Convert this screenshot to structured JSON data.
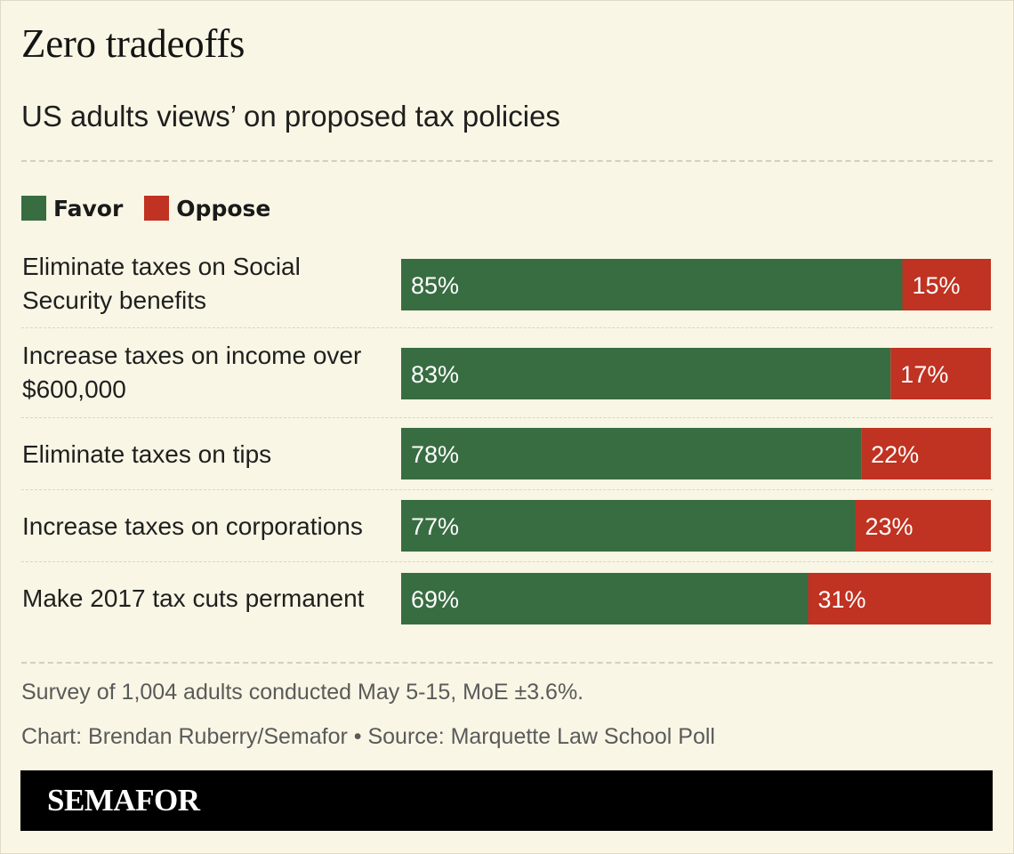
{
  "chart_data": {
    "type": "bar",
    "orientation": "horizontal",
    "stacked": true,
    "title": "Zero tradeoffs",
    "subtitle": "US adults views’ on proposed tax policies",
    "categories": [
      "Eliminate taxes on Social Security benefits",
      "Increase taxes on income over $600,000",
      "Eliminate taxes on tips",
      "Increase taxes on corporations",
      "Make 2017 tax cuts permanent"
    ],
    "series": [
      {
        "name": "Favor",
        "color": "#386d42",
        "values": [
          85,
          83,
          78,
          77,
          69
        ]
      },
      {
        "name": "Oppose",
        "color": "#c03221",
        "values": [
          15,
          17,
          22,
          23,
          31
        ]
      }
    ],
    "value_suffix": "%",
    "xlim": [
      0,
      100
    ],
    "legend": "top-left",
    "grid": false
  },
  "legend": {
    "favor_label": "Favor",
    "oppose_label": "Oppose"
  },
  "rows": [
    {
      "label": "Eliminate taxes on Social Security benefits"
    },
    {
      "label": "Increase taxes on income over $600,000"
    },
    {
      "label": "Eliminate taxes on tips"
    },
    {
      "label": "Increase taxes on corporations"
    },
    {
      "label": "Make 2017 tax cuts permanent"
    }
  ],
  "footer": {
    "note": "Survey of 1,004 adults conducted May 5-15, MoE ±3.6%.",
    "credit": "Chart: Brendan Ruberry/Semafor • Source: Marquette Law School Poll",
    "brand": "SEMAFOR"
  }
}
